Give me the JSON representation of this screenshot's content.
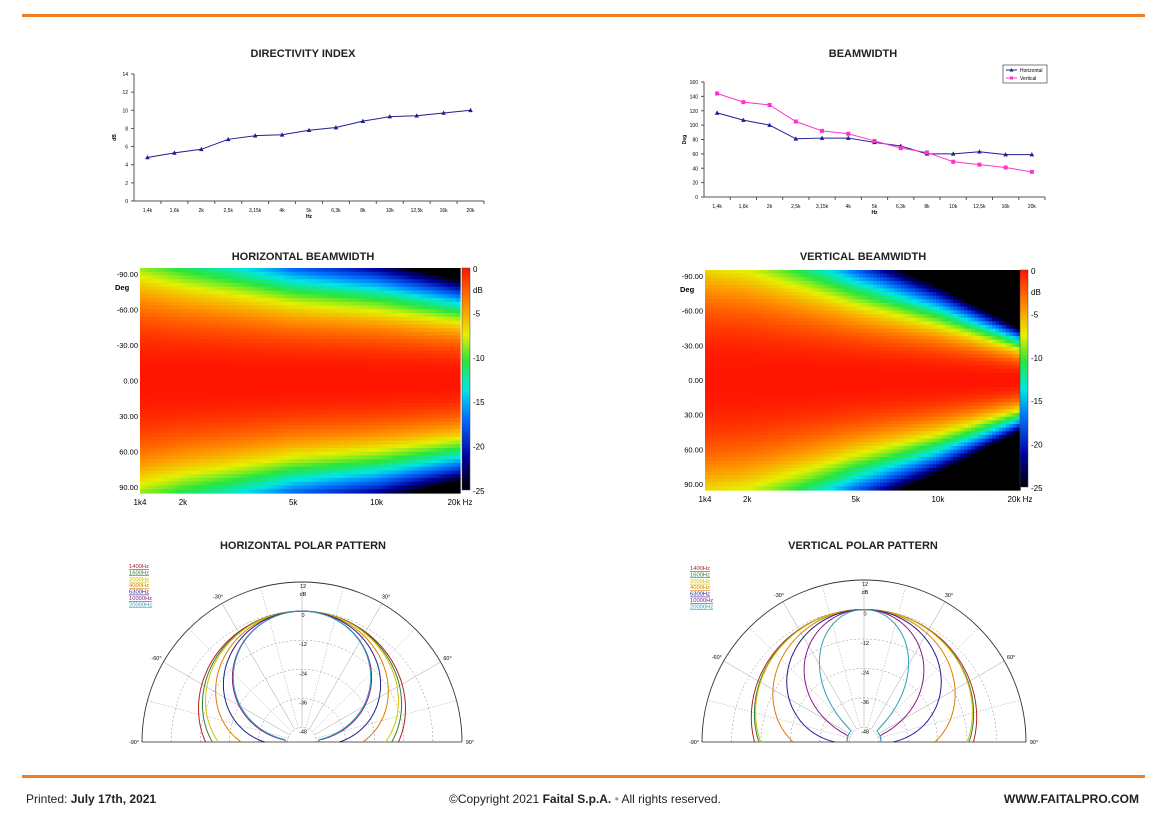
{
  "footer": {
    "printed_label": "Printed:",
    "printed_date": "July 17th, 2021",
    "copyright_pre": "©Copyright 2021",
    "company": "Faital S.p.A.",
    "rights": "All rights reserved.",
    "website": "WWW.FAITALPRO.COM"
  },
  "colors": {
    "accent": "#f07d22",
    "horizontal": "#1f1f8f",
    "vertical": "#ff33cc"
  },
  "chart_data": [
    {
      "type": "line",
      "title": "DIRECTIVITY INDEX",
      "xlabel": "Hz",
      "ylabel": "dB",
      "categories": [
        "1,4k",
        "1,6k",
        "2k",
        "2,5k",
        "3,15k",
        "4k",
        "5k",
        "6,3k",
        "8k",
        "10k",
        "12,5k",
        "16k",
        "20k"
      ],
      "series": [
        {
          "values": [
            4.8,
            5.3,
            5.7,
            6.8,
            7.2,
            7.3,
            7.8,
            8.1,
            8.8,
            9.3,
            9.4,
            9.7,
            10.0
          ]
        }
      ],
      "ylim": [
        0,
        14
      ],
      "yticks": [
        0,
        2,
        4,
        6,
        8,
        10,
        12,
        14
      ]
    },
    {
      "type": "line",
      "title": "BEAMWIDTH",
      "xlabel": "Hz",
      "ylabel": "Deg",
      "categories": [
        "1,4k",
        "1,6k",
        "2k",
        "2,5k",
        "3,15k",
        "4k",
        "5k",
        "6,3k",
        "8k",
        "10k",
        "12,5k",
        "16k",
        "20k"
      ],
      "series": [
        {
          "name": "Horizontal",
          "values": [
            117,
            107,
            100,
            81,
            82,
            82,
            76,
            71,
            60,
            60,
            63,
            59,
            59
          ]
        },
        {
          "name": "Vertical",
          "values": [
            144,
            132,
            128,
            105,
            92,
            88,
            78,
            68,
            62,
            49,
            45,
            41,
            35
          ]
        }
      ],
      "ylim": [
        0,
        160
      ],
      "yticks": [
        0,
        20,
        40,
        60,
        80,
        100,
        120,
        140,
        160
      ],
      "legend": "top-right"
    },
    {
      "type": "heatmap",
      "title": "HORIZONTAL BEAMWIDTH",
      "ylabel": "Deg",
      "yticks": [
        "-90.00",
        "-60.00",
        "-30.00",
        "0.00",
        "30.00",
        "60.00",
        "90.00"
      ],
      "xticks": [
        "1k4",
        "2k",
        "5k",
        "10k",
        "20k Hz"
      ],
      "colorbar_label": "dB",
      "colorbar_ticks": [
        "0",
        "-5",
        "-10",
        "-15",
        "-20",
        "-25"
      ],
      "zlim": [
        -25,
        0
      ],
      "half_width_deg_at": {
        "1400": 75,
        "2000": 68,
        "5000": 55,
        "10000": 50,
        "20000": 42
      }
    },
    {
      "type": "heatmap",
      "title": "VERTICAL BEAMWIDTH",
      "ylabel": "Deg",
      "yticks": [
        "-90.00",
        "-60.00",
        "-30.00",
        "0.00",
        "30.00",
        "60.00",
        "90.00"
      ],
      "xticks": [
        "1k4",
        "2k",
        "5k",
        "10k",
        "20k Hz"
      ],
      "colorbar_label": "dB",
      "colorbar_ticks": [
        "0",
        "-5",
        "-10",
        "-15",
        "-20",
        "-25"
      ],
      "zlim": [
        -25,
        0
      ],
      "half_width_deg_at": {
        "1400": 85,
        "2000": 80,
        "5000": 55,
        "10000": 40,
        "20000": 22
      }
    },
    {
      "type": "polar",
      "title": "HORIZONTAL POLAR PATTERN",
      "rlabel": "dB",
      "rticks": [
        "12",
        "0",
        "-12",
        "-24",
        "-36",
        "-48"
      ],
      "angle_labels": [
        "-90°",
        "-60°",
        "-30°",
        "30°",
        "60°",
        "90°"
      ],
      "series": [
        {
          "name": "1400Hz",
          "color": "#b22222",
          "beamwidth_deg": 117
        },
        {
          "name": "1600Hz",
          "color": "#2e7d32",
          "beamwidth_deg": 107
        },
        {
          "name": "2000Hz",
          "color": "#d4c200",
          "beamwidth_deg": 100
        },
        {
          "name": "4000Hz",
          "color": "#e07b00",
          "beamwidth_deg": 82
        },
        {
          "name": "6300Hz",
          "color": "#1f1f8f",
          "beamwidth_deg": 71
        },
        {
          "name": "10000Hz",
          "color": "#8b1a8b",
          "beamwidth_deg": 60
        },
        {
          "name": "20000Hz",
          "color": "#2fa3b5",
          "beamwidth_deg": 59
        }
      ]
    },
    {
      "type": "polar",
      "title": "VERTICAL POLAR PATTERN",
      "rlabel": "dB",
      "rticks": [
        "12",
        "0",
        "-12",
        "-24",
        "-36",
        "-48"
      ],
      "angle_labels": [
        "-90°",
        "-60°",
        "-30°",
        "30°",
        "60°",
        "90°"
      ],
      "series": [
        {
          "name": "1400Hz",
          "color": "#b22222",
          "beamwidth_deg": 144
        },
        {
          "name": "1600Hz",
          "color": "#2e7d32",
          "beamwidth_deg": 132
        },
        {
          "name": "2000Hz",
          "color": "#d4c200",
          "beamwidth_deg": 128
        },
        {
          "name": "4000Hz",
          "color": "#e07b00",
          "beamwidth_deg": 88
        },
        {
          "name": "6300Hz",
          "color": "#1f1f8f",
          "beamwidth_deg": 68
        },
        {
          "name": "10000Hz",
          "color": "#8b1a8b",
          "beamwidth_deg": 49
        },
        {
          "name": "20000Hz",
          "color": "#2fa3b5",
          "beamwidth_deg": 35
        }
      ]
    }
  ]
}
